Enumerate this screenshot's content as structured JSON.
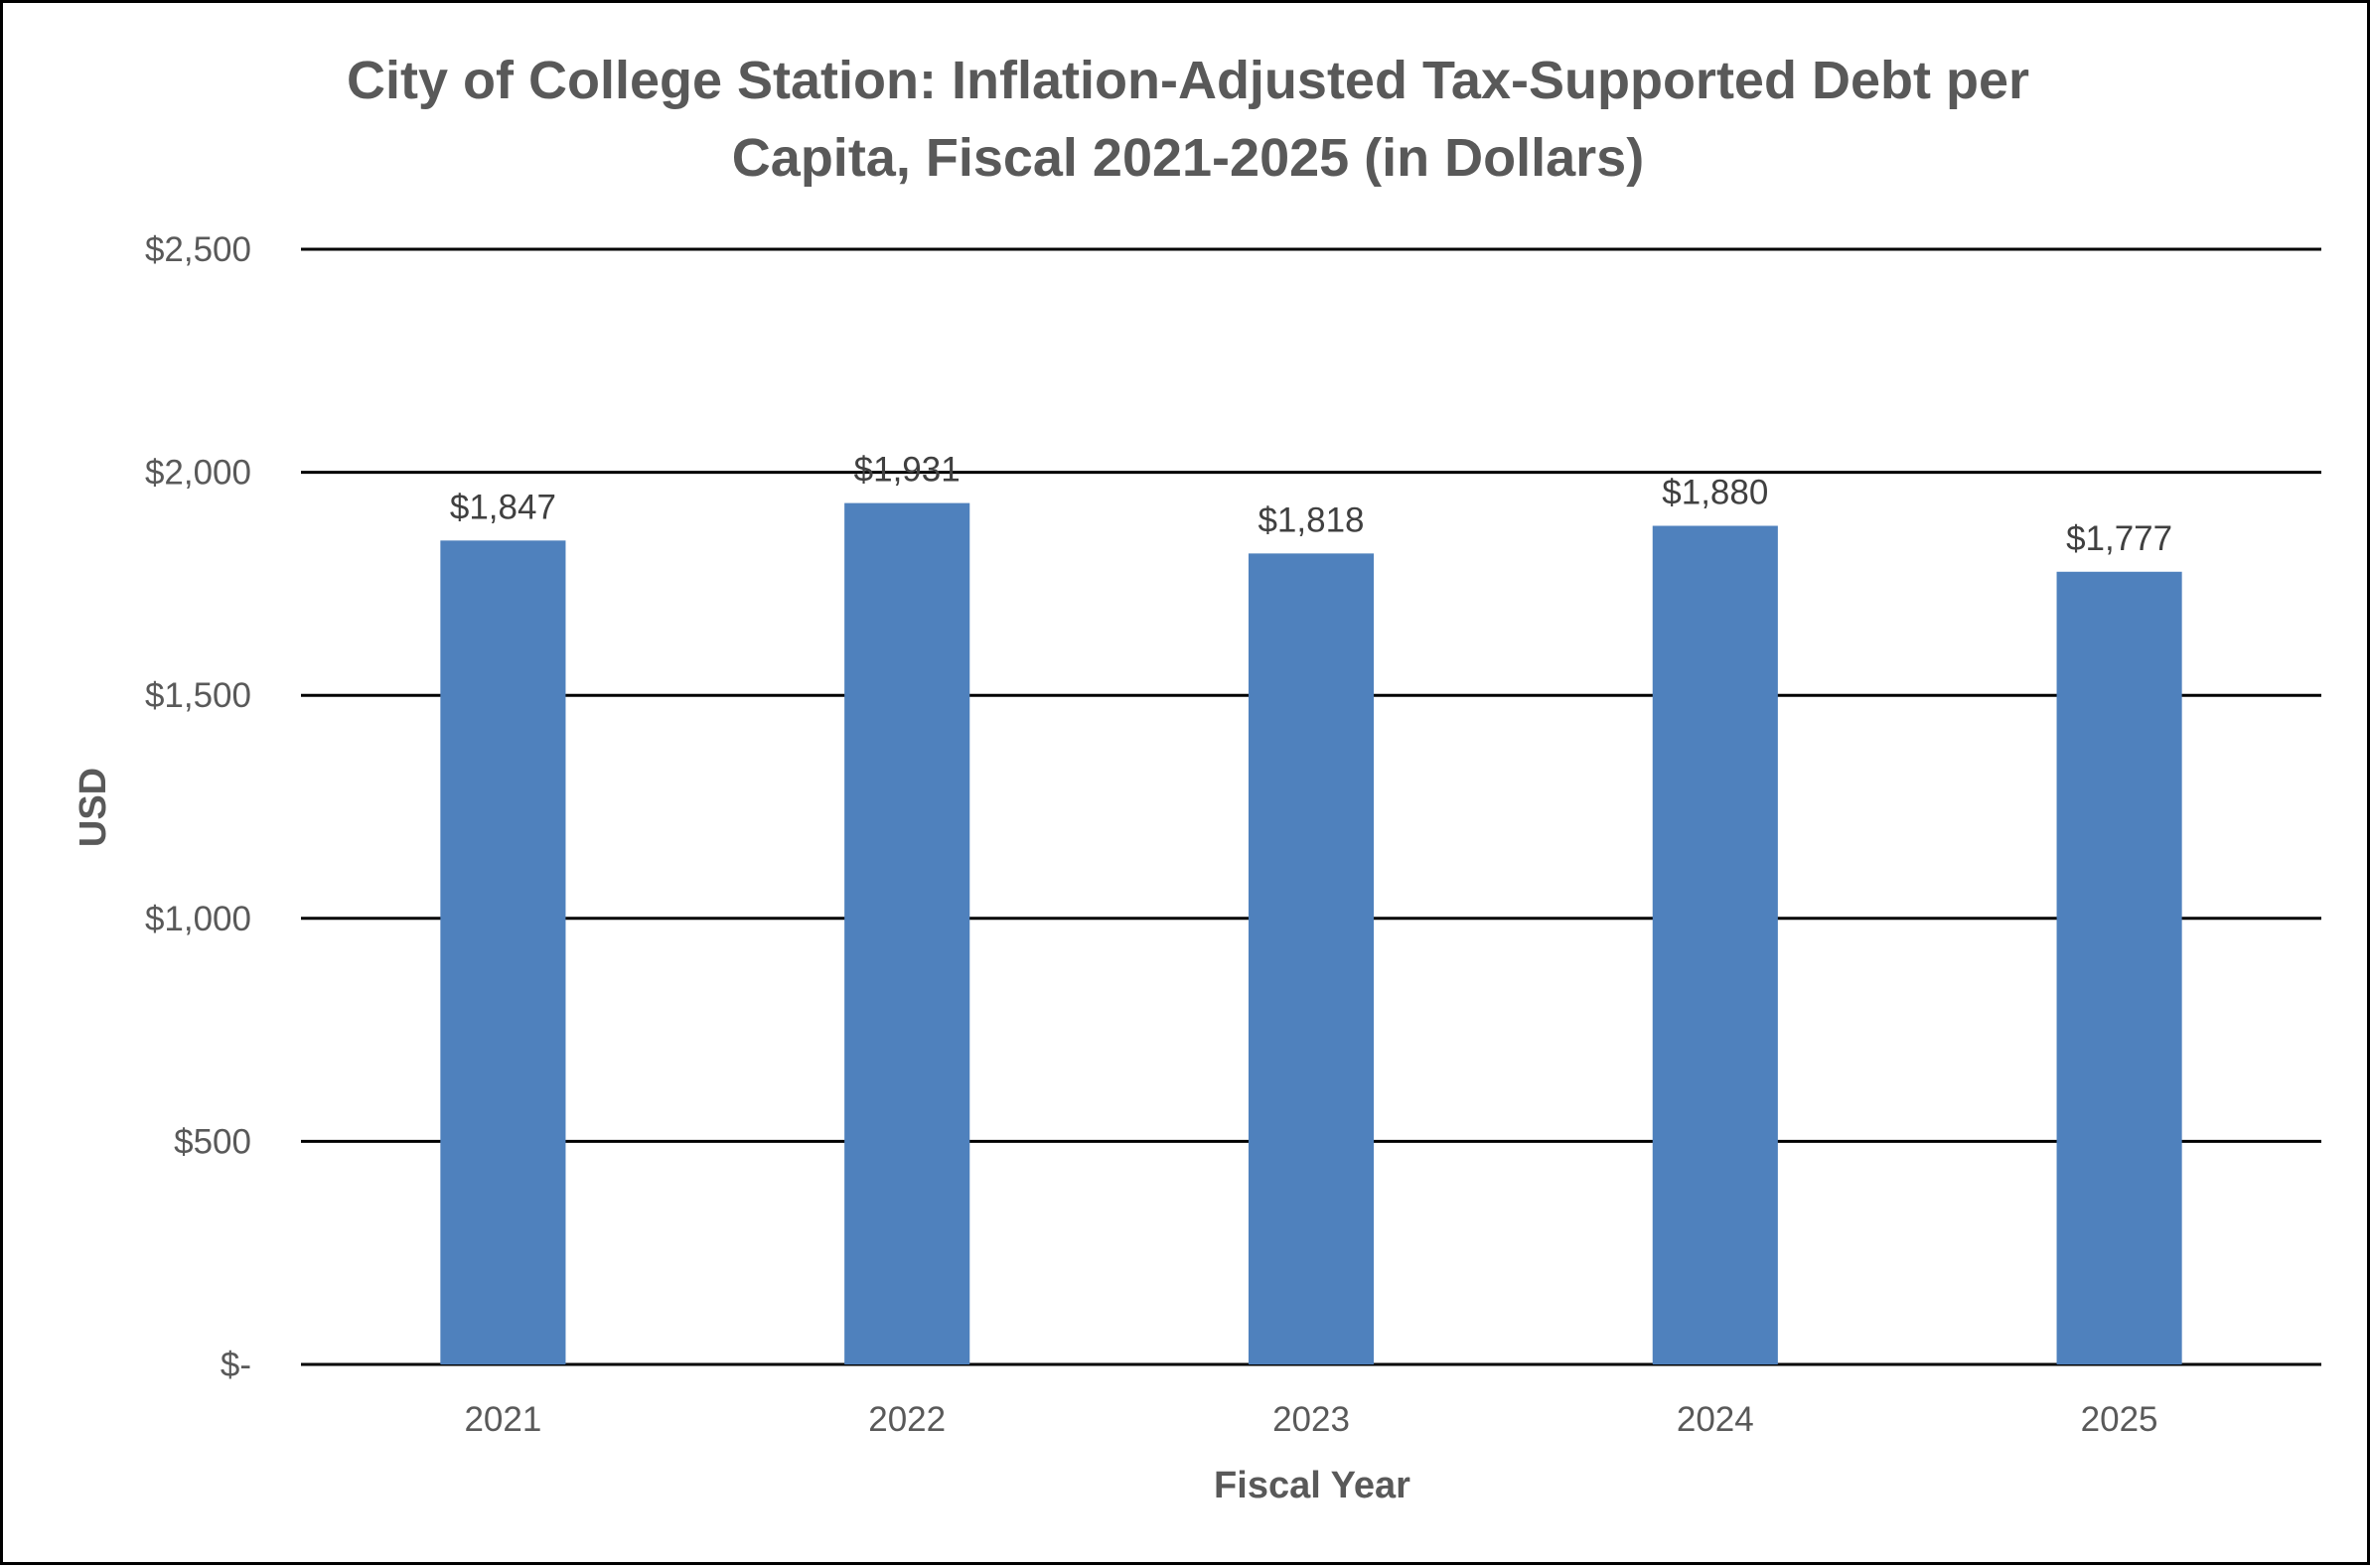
{
  "chart_data": {
    "type": "bar",
    "title_lines": [
      "City of College Station: Inflation-Adjusted Tax-Supported Debt per",
      "Capita, Fiscal 2021-2025 (in Dollars)"
    ],
    "xlabel": "Fiscal Year",
    "ylabel": "USD",
    "categories": [
      "2021",
      "2022",
      "2023",
      "2024",
      "2025"
    ],
    "values": [
      1847,
      1931,
      1818,
      1880,
      1777
    ],
    "data_labels": [
      "$1,847",
      "$1,931",
      "$1,818",
      "$1,880",
      "$1,777"
    ],
    "ylim": [
      0,
      2500
    ],
    "yticks": [
      0,
      500,
      1000,
      1500,
      2000,
      2500
    ],
    "ytick_labels": [
      "$-",
      "$500",
      "$1,000",
      "$1,500",
      "$2,000",
      "$2,500"
    ],
    "grid": true,
    "legend": "none",
    "bar_color": "#4F81BD"
  }
}
